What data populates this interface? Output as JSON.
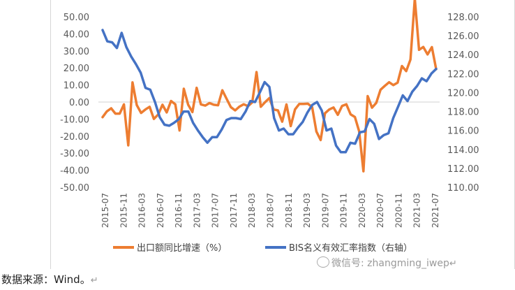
{
  "chart_data": {
    "type": "line",
    "title": "",
    "xlabel": "",
    "y_left": {
      "ylim": [
        -50,
        50
      ],
      "ticks": [
        "50.00",
        "40.00",
        "30.00",
        "20.00",
        "10.00",
        "0.00",
        "-10.00",
        "-20.00",
        "-30.00",
        "-40.00",
        "-50.00"
      ]
    },
    "y_right": {
      "ylim": [
        110,
        128
      ],
      "ticks": [
        "128.00",
        "126.00",
        "124.00",
        "122.00",
        "120.00",
        "118.00",
        "116.00",
        "114.00",
        "112.00",
        "110.00"
      ]
    },
    "x_ticks": [
      "2015-07",
      "2015-11",
      "2016-03",
      "2016-07",
      "2016-11",
      "2017-03",
      "2017-07",
      "2017-11",
      "2018-03",
      "2018-07",
      "2018-11",
      "2019-03",
      "2019-07",
      "2019-11",
      "2020-03",
      "2020-07",
      "2020-11",
      "2021-03",
      "2021-07"
    ],
    "grid": false,
    "legend_position": "bottom",
    "series": [
      {
        "name": "出口额同比增速（%）",
        "axis": "left",
        "color": "#ED7D31",
        "values": [
          -8.9,
          -5.5,
          -3.7,
          -6.8,
          -6.8,
          -1.4,
          -25.4,
          11.5,
          -1.8,
          -6.4,
          -4.4,
          -2.8,
          -9.9,
          -7.3,
          -1.6,
          -6.1,
          0.6,
          -1.3,
          -16.7,
          7.8,
          -1.5,
          -5.9,
          8.3,
          -1.4,
          -2.1,
          -0.6,
          -1.6,
          -1.9,
          6.9,
          1.9,
          -3.0,
          -4.9,
          -2.7,
          -1.3,
          -2.4,
          -0.2,
          17.6,
          -2.8,
          -0.1,
          2.3,
          -4.4,
          -4.9,
          -11.5,
          -1.4,
          -14.1,
          -4.3,
          -1.1,
          -1.1,
          -1.0,
          -3.0,
          -17.3,
          -22.3,
          -6.6,
          -4.4,
          -3.2,
          -7.5,
          -2.3,
          -1.3,
          -7.2,
          -8.8,
          -17.2,
          -40.6,
          3.5,
          -3.3,
          -0.5,
          7.2,
          9.5,
          11.6,
          9.9,
          11.4,
          21.1,
          18.1,
          24.9,
          60.6,
          30.6,
          32.3,
          27.9,
          32.2,
          19.3
        ]
      },
      {
        "name": "BIS名义有效汇率指数（右轴）",
        "axis": "right",
        "color": "#4472C4",
        "values": [
          126.6,
          125.4,
          125.3,
          124.7,
          126.3,
          124.8,
          123.8,
          123.0,
          122.1,
          120.5,
          120.3,
          119.0,
          117.4,
          116.6,
          116.5,
          116.8,
          117.2,
          118.0,
          118.0,
          116.8,
          116.0,
          115.3,
          114.7,
          115.3,
          115.3,
          116.1,
          117.1,
          117.3,
          117.3,
          117.2,
          118.0,
          119.1,
          119.0,
          120.0,
          121.1,
          120.6,
          117.3,
          116.0,
          116.2,
          115.6,
          115.6,
          116.3,
          116.9,
          117.9,
          118.7,
          119.0,
          118.1,
          116.0,
          116.2,
          114.4,
          113.7,
          113.7,
          114.7,
          114.6,
          115.8,
          115.9,
          117.2,
          116.7,
          115.1,
          115.5,
          115.7,
          117.3,
          118.5,
          119.7,
          119.1,
          120.1,
          120.7,
          121.5,
          121.2,
          122.0,
          122.5
        ]
      }
    ]
  },
  "source_label": "数据来源：Wind。",
  "watermark_text": "微信号: zhangming_iwep",
  "return_mark": "↵"
}
